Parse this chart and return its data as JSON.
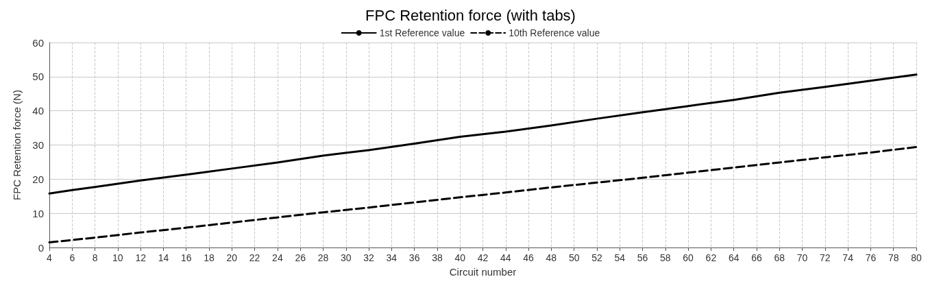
{
  "chart_data": {
    "type": "line",
    "title": "FPC Retention force (with tabs)",
    "xlabel": "Circuit number",
    "ylabel": "FPC Retention force (N)",
    "x": [
      4,
      6,
      8,
      12,
      16,
      20,
      24,
      28,
      32,
      36,
      40,
      44,
      48,
      52,
      56,
      60,
      64,
      68,
      72,
      76,
      80
    ],
    "series": [
      {
        "name": "1st Reference value",
        "color": "#000000",
        "line_style": "solid",
        "values": [
          15.8,
          16.8,
          17.7,
          19.6,
          21.3,
          23.1,
          24.9,
          26.9,
          28.5,
          30.4,
          32.4,
          33.9,
          35.7,
          37.7,
          39.6,
          41.4,
          43.2,
          45.3,
          47.0,
          48.8,
          50.6
        ]
      },
      {
        "name": "10th Reference value",
        "color": "#000000",
        "line_style": "dashed",
        "values": [
          1.5,
          2.2,
          2.9,
          4.4,
          5.8,
          7.3,
          8.8,
          10.3,
          11.7,
          13.2,
          14.7,
          16.1,
          17.6,
          19.0,
          20.4,
          21.9,
          23.4,
          24.9,
          26.4,
          27.8,
          29.4
        ]
      }
    ],
    "xlim": [
      4,
      80
    ],
    "xticks": [
      4,
      6,
      8,
      10,
      12,
      14,
      16,
      18,
      20,
      22,
      24,
      26,
      28,
      30,
      32,
      34,
      36,
      38,
      40,
      42,
      44,
      46,
      48,
      50,
      52,
      54,
      56,
      58,
      60,
      62,
      64,
      66,
      68,
      70,
      72,
      74,
      76,
      78,
      80
    ],
    "ylim": [
      0,
      60
    ],
    "yticks": [
      0,
      10,
      20,
      30,
      40,
      50,
      60
    ],
    "grid": true,
    "legend": "top",
    "marker": "none"
  }
}
